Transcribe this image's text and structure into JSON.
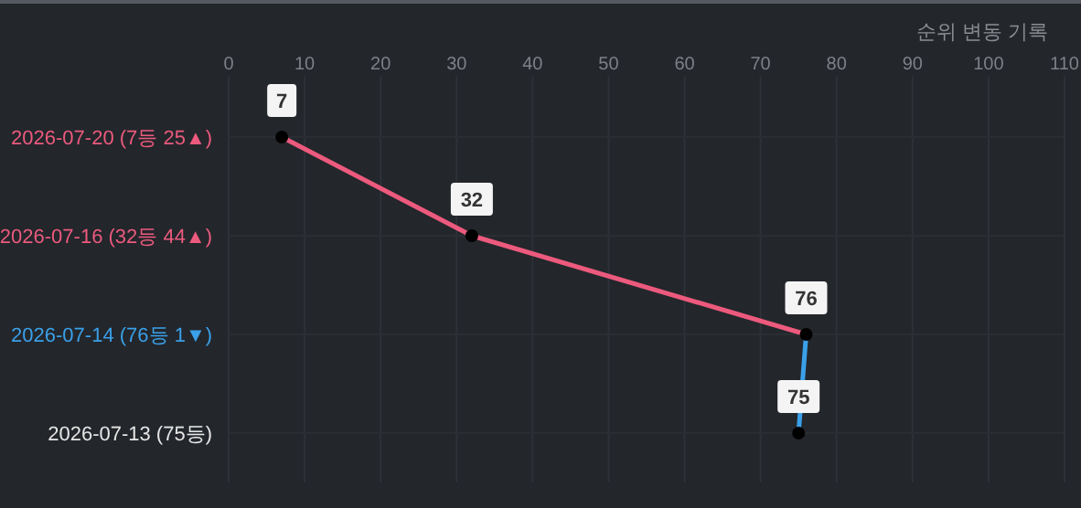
{
  "chart_data": {
    "type": "line",
    "orientation": "horizontal",
    "title": "순위 변동 기록",
    "categories": [
      "2026-07-20 (7등 25▲)",
      "2026-07-16 (32등 44▲)",
      "2026-07-14 (76등 1▼)",
      "2026-07-13 (75등)"
    ],
    "series": [
      {
        "color": "#ec5a7d",
        "values": [
          7,
          32,
          76,
          null
        ],
        "value_labels": [
          "7",
          "32",
          "76",
          null
        ]
      },
      {
        "color": "#3aa0e8",
        "values": [
          null,
          null,
          76,
          75
        ],
        "value_labels": [
          null,
          null,
          null,
          "75"
        ]
      }
    ],
    "xlim": [
      0,
      110
    ],
    "xticks": [
      0,
      10,
      20,
      30,
      40,
      50,
      60,
      70,
      80,
      90,
      100,
      110
    ],
    "grid": true,
    "marker": "circle"
  }
}
